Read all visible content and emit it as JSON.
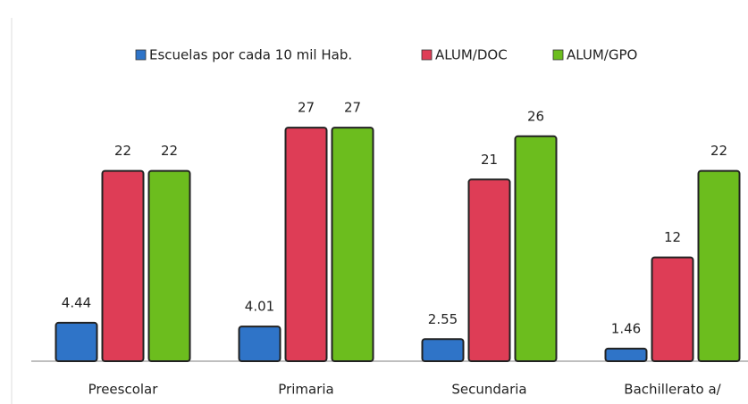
{
  "chart_data": {
    "type": "bar",
    "categories": [
      "Preescolar",
      "Primaria",
      "Secundaria",
      "Bachillerato a/"
    ],
    "series": [
      {
        "name": "Escuelas por cada 10 mil Hab.",
        "color": "#2f74c8",
        "values": [
          4.44,
          4.01,
          2.55,
          1.46
        ]
      },
      {
        "name": "ALUM/DOC",
        "color": "#de3d56",
        "values": [
          22,
          27,
          21,
          12
        ]
      },
      {
        "name": "ALUM/GPO",
        "color": "#6cbd1e",
        "values": [
          22,
          27,
          26,
          22
        ]
      }
    ],
    "ylim": [
      0,
      30
    ],
    "legend": "top"
  }
}
